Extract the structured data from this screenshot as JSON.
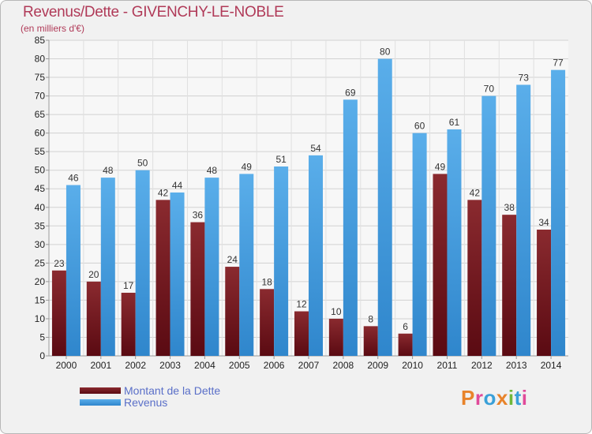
{
  "title": "Revenus/Dette - GIVENCHY-LE-NOBLE",
  "subtitle": "(en milliers d'€)",
  "logo": {
    "chars": [
      "P",
      "r",
      "o",
      "x",
      "i",
      "t",
      "i"
    ],
    "colors": [
      "#e8832a",
      "#e04a9a",
      "#3aa0d8",
      "#e8832a",
      "#70b83a",
      "#3aa0d8",
      "#e04a9a"
    ]
  },
  "chart_data": {
    "type": "bar",
    "title": "Revenus/Dette - GIVENCHY-LE-NOBLE",
    "categories": [
      "2000",
      "2001",
      "2002",
      "2003",
      "2004",
      "2005",
      "2006",
      "2007",
      "2008",
      "2009",
      "2010",
      "2011",
      "2012",
      "2013",
      "2014"
    ],
    "series": [
      {
        "name": "Montant de la Dette",
        "color": "#7a1f24",
        "values": [
          23,
          20,
          17,
          42,
          36,
          24,
          18,
          12,
          10,
          8,
          6,
          49,
          42,
          38,
          34
        ]
      },
      {
        "name": "Revenus",
        "color": "#4a9fe0",
        "values": [
          46,
          48,
          50,
          44,
          48,
          49,
          51,
          54,
          69,
          80,
          60,
          61,
          70,
          73,
          77
        ]
      }
    ],
    "ylim": [
      0,
      85
    ],
    "yticks": [
      0,
      5,
      10,
      15,
      20,
      25,
      30,
      35,
      40,
      45,
      50,
      55,
      60,
      65,
      70,
      75,
      80,
      85
    ],
    "grid": true,
    "legend": "bottom-left"
  }
}
